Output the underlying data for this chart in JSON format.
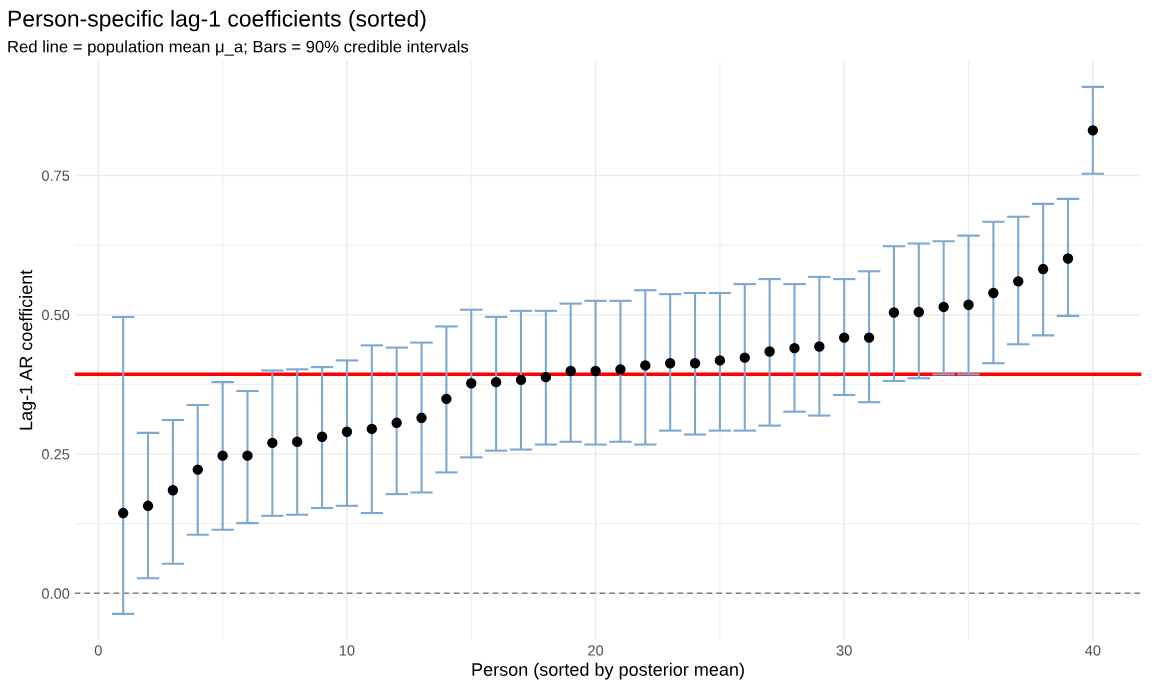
{
  "chart_data": {
    "type": "scatter",
    "title": "Person-specific lag-1 coefficients (sorted)",
    "subtitle": "Red line = population mean μ_a; Bars = 90% credible intervals",
    "xlabel": "Person (sorted by posterior mean)",
    "ylabel": "Lag-1 AR coefficient",
    "x": [
      1,
      2,
      3,
      4,
      5,
      6,
      7,
      8,
      9,
      10,
      11,
      12,
      13,
      14,
      15,
      16,
      17,
      18,
      19,
      20,
      21,
      22,
      23,
      24,
      25,
      26,
      27,
      28,
      29,
      30,
      31,
      32,
      33,
      34,
      35,
      36,
      37,
      38,
      39,
      40
    ],
    "series": [
      {
        "color": "#000000",
        "values": [
          0.144,
          0.157,
          0.185,
          0.222,
          0.247,
          0.247,
          0.27,
          0.272,
          0.281,
          0.29,
          0.295,
          0.306,
          0.315,
          0.349,
          0.377,
          0.379,
          0.383,
          0.388,
          0.399,
          0.399,
          0.402,
          0.409,
          0.413,
          0.413,
          0.418,
          0.423,
          0.434,
          0.44,
          0.443,
          0.459,
          0.459,
          0.504,
          0.505,
          0.514,
          0.518,
          0.539,
          0.56,
          0.582,
          0.601,
          0.831
        ],
        "errors": [
          [
            -0.037,
            0.496
          ],
          [
            0.027,
            0.288
          ],
          [
            0.053,
            0.311
          ],
          [
            0.105,
            0.338
          ],
          [
            0.114,
            0.379
          ],
          [
            0.126,
            0.363
          ],
          [
            0.139,
            0.4
          ],
          [
            0.141,
            0.402
          ],
          [
            0.153,
            0.406
          ],
          [
            0.157,
            0.418
          ],
          [
            0.144,
            0.445
          ],
          [
            0.178,
            0.441
          ],
          [
            0.181,
            0.45
          ],
          [
            0.217,
            0.479
          ],
          [
            0.244,
            0.509
          ],
          [
            0.256,
            0.496
          ],
          [
            0.258,
            0.507
          ],
          [
            0.267,
            0.507
          ],
          [
            0.272,
            0.52
          ],
          [
            0.267,
            0.525
          ],
          [
            0.272,
            0.525
          ],
          [
            0.267,
            0.544
          ],
          [
            0.292,
            0.537
          ],
          [
            0.285,
            0.539
          ],
          [
            0.292,
            0.539
          ],
          [
            0.292,
            0.555
          ],
          [
            0.301,
            0.564
          ],
          [
            0.326,
            0.555
          ],
          [
            0.319,
            0.568
          ],
          [
            0.356,
            0.564
          ],
          [
            0.343,
            0.578
          ],
          [
            0.381,
            0.623
          ],
          [
            0.386,
            0.628
          ],
          [
            0.393,
            0.632
          ],
          [
            0.393,
            0.642
          ],
          [
            0.413,
            0.667
          ],
          [
            0.447,
            0.676
          ],
          [
            0.463,
            0.699
          ],
          [
            0.498,
            0.708
          ],
          [
            0.753,
            0.909
          ]
        ]
      }
    ],
    "ref_lines": [
      {
        "axis": "y",
        "value": 0.393,
        "color": "#ff0000",
        "line_style": "solid"
      },
      {
        "axis": "y",
        "value": 0,
        "color": "#7f7f7f",
        "line_style": "dashed"
      }
    ],
    "xlim": [
      -0.95,
      41.95
    ],
    "ylim": [
      -0.084,
      0.956
    ],
    "xticks": [
      0,
      10,
      20,
      30,
      40
    ],
    "yticks": [
      {
        "value": 0,
        "label": "0.00"
      },
      {
        "value": 0.25,
        "label": "0.25"
      },
      {
        "value": 0.5,
        "label": "0.50"
      },
      {
        "value": 0.75,
        "label": "0.75"
      }
    ],
    "grid": true,
    "legend": false,
    "marker": "circle"
  }
}
